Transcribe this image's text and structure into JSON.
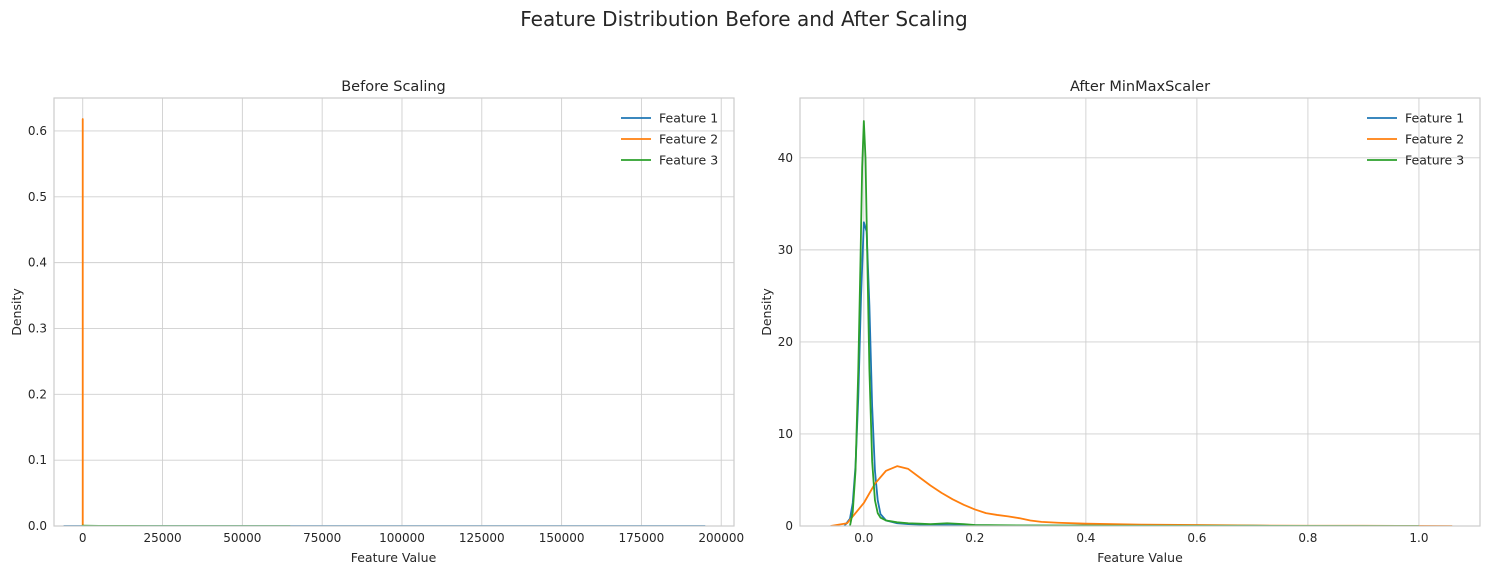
{
  "figure": {
    "title": "Feature Distribution Before and After Scaling"
  },
  "chart_data": [
    {
      "type": "line",
      "title": "Before Scaling",
      "xlabel": "Feature Value",
      "ylabel": "Density",
      "xlim": [
        -9000,
        204000
      ],
      "ylim": [
        0,
        0.65
      ],
      "xticks": [
        0,
        25000,
        50000,
        75000,
        100000,
        125000,
        150000,
        175000,
        200000
      ],
      "yticks": [
        0.0,
        0.1,
        0.2,
        0.3,
        0.4,
        0.5,
        0.6
      ],
      "grid": true,
      "legend": "top-right",
      "series": [
        {
          "name": "Feature 1",
          "color": "#1f77b4",
          "x": [
            -6000,
            0,
            50000,
            100000,
            150000,
            195000
          ],
          "y": [
            0.0,
            2e-05,
            1e-05,
            5e-06,
            2e-06,
            0.0
          ]
        },
        {
          "name": "Feature 2",
          "color": "#ff7f0e",
          "x": [
            -6,
            -3,
            -1.5,
            0,
            1.5,
            3,
            6,
            10
          ],
          "y": [
            0.0,
            0.05,
            0.38,
            0.618,
            0.45,
            0.12,
            0.01,
            0.0
          ]
        },
        {
          "name": "Feature 3",
          "color": "#2ca02c",
          "x": [
            -300,
            0,
            5000,
            20000,
            40000,
            65000
          ],
          "y": [
            0.0,
            0.0006,
            0.0002,
            5e-05,
            1e-05,
            0.0
          ]
        }
      ]
    },
    {
      "type": "line",
      "title": "After MinMaxScaler",
      "xlabel": "Feature Value",
      "ylabel": "Density",
      "xlim": [
        -0.115,
        1.11
      ],
      "ylim": [
        0,
        46.5
      ],
      "xticks": [
        0.0,
        0.2,
        0.4,
        0.6,
        0.8,
        1.0
      ],
      "yticks": [
        0,
        10,
        20,
        30,
        40
      ],
      "grid": true,
      "legend": "top-right",
      "series": [
        {
          "name": "Feature 1",
          "color": "#1f77b4",
          "x": [
            -0.035,
            -0.025,
            -0.02,
            -0.015,
            -0.01,
            -0.005,
            0.0,
            0.005,
            0.01,
            0.015,
            0.02,
            0.025,
            0.03,
            0.04,
            0.06,
            0.08,
            0.1,
            0.15,
            0.2,
            0.3,
            0.5,
            0.7,
            1.0
          ],
          "y": [
            0.0,
            0.8,
            2.5,
            6.5,
            14.0,
            25.0,
            33.0,
            32.0,
            24.0,
            13.0,
            6.0,
            2.8,
            1.3,
            0.6,
            0.3,
            0.2,
            0.15,
            0.1,
            0.08,
            0.05,
            0.03,
            0.02,
            0.0
          ]
        },
        {
          "name": "Feature 2",
          "color": "#ff7f0e",
          "x": [
            -0.06,
            -0.03,
            0.0,
            0.02,
            0.04,
            0.06,
            0.08,
            0.1,
            0.12,
            0.14,
            0.16,
            0.18,
            0.2,
            0.22,
            0.24,
            0.26,
            0.28,
            0.3,
            0.32,
            0.35,
            0.4,
            0.5,
            0.6,
            0.7,
            0.8,
            0.9,
            1.0,
            1.06
          ],
          "y": [
            0.0,
            0.3,
            2.5,
            4.6,
            6.0,
            6.5,
            6.2,
            5.3,
            4.4,
            3.6,
            2.9,
            2.3,
            1.8,
            1.4,
            1.2,
            1.05,
            0.85,
            0.6,
            0.45,
            0.35,
            0.25,
            0.15,
            0.1,
            0.05,
            0.03,
            0.02,
            0.01,
            0.0
          ]
        },
        {
          "name": "Feature 3",
          "color": "#2ca02c",
          "x": [
            -0.025,
            -0.02,
            -0.015,
            -0.01,
            -0.006,
            -0.003,
            0.0,
            0.003,
            0.006,
            0.01,
            0.015,
            0.02,
            0.025,
            0.03,
            0.04,
            0.06,
            0.08,
            0.1,
            0.12,
            0.15,
            0.18,
            0.2,
            0.25,
            0.3,
            0.5,
            0.7,
            1.0
          ],
          "y": [
            0.0,
            1.5,
            6.0,
            17.0,
            29.0,
            39.0,
            44.0,
            40.0,
            30.0,
            17.0,
            7.0,
            2.8,
            1.4,
            0.9,
            0.6,
            0.4,
            0.3,
            0.25,
            0.2,
            0.3,
            0.2,
            0.1,
            0.08,
            0.05,
            0.03,
            0.02,
            0.0
          ]
        }
      ]
    }
  ]
}
